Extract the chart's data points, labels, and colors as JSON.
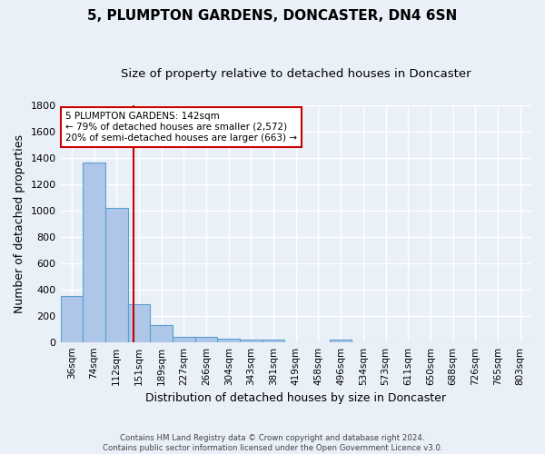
{
  "title": "5, PLUMPTON GARDENS, DONCASTER, DN4 6SN",
  "subtitle": "Size of property relative to detached houses in Doncaster",
  "xlabel": "Distribution of detached houses by size in Doncaster",
  "ylabel": "Number of detached properties",
  "footer_line1": "Contains HM Land Registry data © Crown copyright and database right 2024.",
  "footer_line2": "Contains public sector information licensed under the Open Government Licence v3.0.",
  "categories": [
    "36sqm",
    "74sqm",
    "112sqm",
    "151sqm",
    "189sqm",
    "227sqm",
    "266sqm",
    "304sqm",
    "343sqm",
    "381sqm",
    "419sqm",
    "458sqm",
    "496sqm",
    "534sqm",
    "573sqm",
    "611sqm",
    "650sqm",
    "688sqm",
    "726sqm",
    "765sqm",
    "803sqm"
  ],
  "values": [
    350,
    1360,
    1020,
    290,
    130,
    42,
    42,
    25,
    18,
    18,
    0,
    0,
    18,
    0,
    0,
    0,
    0,
    0,
    0,
    0,
    0
  ],
  "bar_color": "#aec6e8",
  "bar_edge_color": "#5a9fd4",
  "property_line_x": 2.75,
  "property_line_color": "#cc0000",
  "annotation_text": "5 PLUMPTON GARDENS: 142sqm\n← 79% of detached houses are smaller (2,572)\n20% of semi-detached houses are larger (663) →",
  "annotation_box_color": "#ffffff",
  "annotation_box_edge": "#cc0000",
  "ylim": [
    0,
    1800
  ],
  "background_color": "#eaf0f8",
  "grid_color": "#ffffff",
  "annotation_fontsize": 7.5,
  "title_fontsize": 11,
  "subtitle_fontsize": 9.5
}
